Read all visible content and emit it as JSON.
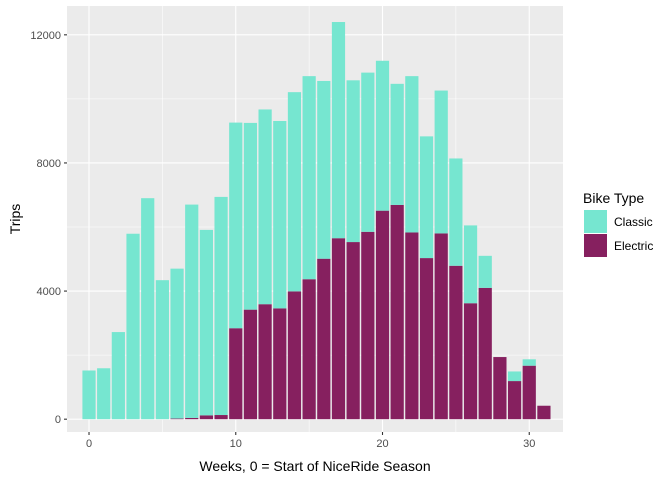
{
  "chart_data": {
    "type": "bar",
    "stacked": true,
    "title": "",
    "xlabel": "Weeks, 0 = Start of NiceRide Season",
    "ylabel": "Trips",
    "xlim": [
      -1.5,
      32.3
    ],
    "ylim": [
      -400,
      12900
    ],
    "x_ticks": [
      0,
      10,
      20,
      30
    ],
    "y_ticks": [
      0,
      4000,
      8000,
      12000
    ],
    "y_tick_labels": [
      "0",
      "4000",
      "8000",
      "12000"
    ],
    "grid": true,
    "legend": {
      "title": "Bike Type",
      "position": "right"
    },
    "x": [
      0,
      1,
      2,
      3,
      4,
      5,
      6,
      7,
      8,
      9,
      10,
      11,
      12,
      13,
      14,
      15,
      16,
      17,
      18,
      19,
      20,
      21,
      22,
      23,
      24,
      25,
      26,
      27,
      28,
      29,
      30,
      31
    ],
    "series": [
      {
        "name": "Classic",
        "color": "#76e6d0",
        "values": [
          1520,
          1590,
          2720,
          5790,
          6900,
          4340,
          4680,
          6660,
          5790,
          6810,
          6420,
          5830,
          6080,
          5850,
          6220,
          6340,
          5550,
          6750,
          5050,
          4970,
          4680,
          3780,
          4880,
          3800,
          4460,
          3350,
          2430,
          1000,
          0,
          300,
          200,
          0
        ]
      },
      {
        "name": "Electric",
        "color": "#86205f",
        "values": [
          0,
          0,
          0,
          0,
          0,
          0,
          20,
          40,
          120,
          130,
          2840,
          3420,
          3590,
          3460,
          3990,
          4370,
          5010,
          5650,
          5530,
          5850,
          6510,
          6690,
          5830,
          5030,
          5800,
          4790,
          3620,
          4100,
          1940,
          1190,
          1670,
          420
        ]
      }
    ]
  }
}
